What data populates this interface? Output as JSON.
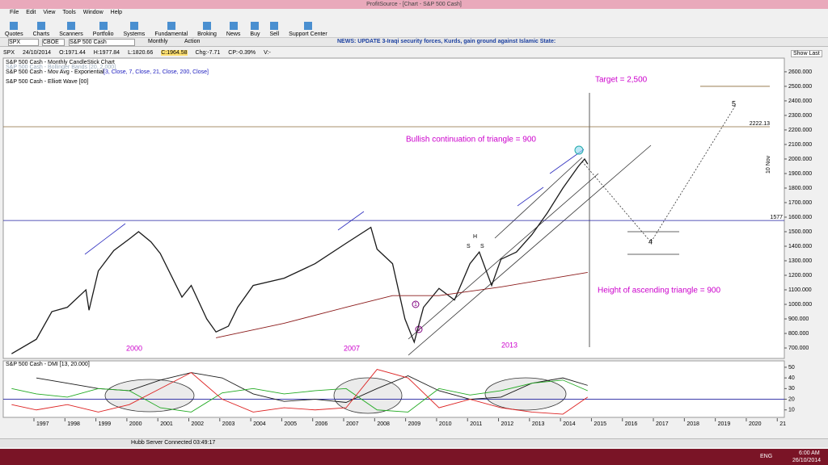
{
  "window": {
    "title": "ProfitSource - [Chart - S&P 500 Cash]",
    "menu": [
      "File",
      "Edit",
      "View",
      "Tools",
      "Window",
      "Help"
    ],
    "toolbar": [
      "Quotes",
      "Charts",
      "Scanners",
      "Portfolio",
      "Systems",
      "Fundamental",
      "Broking",
      "News",
      "Buy",
      "Sell",
      "Support Center"
    ],
    "symbol": "SPX",
    "exchange": "CBOE",
    "security": "S&P 500 Cash",
    "period": "Monthly",
    "action": "Action",
    "news": "NEWS: UPDATE 3-Iraqi security forces, Kurds, gain ground against Islamic State:",
    "info": [
      "SPX",
      "24/10/2014",
      "O:1971.44",
      "H:1977.84",
      "L:1820.66",
      "C:1964.58",
      "Chg:-7.71",
      "CP:-0.39%",
      "V:-"
    ],
    "show_last": "Show Last",
    "status": "Hubb Server Connected 03:49:17",
    "taskbar": {
      "lang": "ENG",
      "time": "6:00 AM",
      "date": "26/10/2014"
    }
  },
  "chart_data": [
    {
      "type": "line",
      "legend_lines": [
        "S&P 500 Cash - Monthly CandleStick Chart",
        "S&P 500 Cash - Bollinger Bands [20, 2.000]",
        "S&P 500 Cash - Mov Avg - Exponential",
        "[3, Close, 7, Close, 21, Close, 200, Close]",
        "S&P 500 Cash - Elliott Wave [00]"
      ],
      "annotations": [
        "Target = 2,500",
        "Bullish continuation of triangle = 900",
        "Height of ascending triangle = 900",
        "2000",
        "2007",
        "2013",
        "H",
        "S",
        "S",
        "5",
        "4",
        "1",
        "2",
        "10 Nov"
      ],
      "xlim": [
        1995.93,
        2021.15
      ],
      "xticks": [
        1997,
        1998,
        1999,
        2000,
        2001,
        2002,
        2003,
        2004,
        2005,
        2006,
        2007,
        2008,
        2009,
        2010,
        2011,
        2012,
        2013,
        2014,
        2015,
        2016,
        2017,
        2018,
        2019,
        2020,
        {
          "value": 2021,
          "label": "21"
        }
      ],
      "ylim": [
        628,
        2694
      ],
      "yticks": [
        {
          "value": 700,
          "label": "700.000"
        },
        {
          "value": 800,
          "label": "800.000"
        },
        {
          "value": 900,
          "label": "900.000"
        },
        {
          "value": 1000,
          "label": "1000.000"
        },
        {
          "value": 1100,
          "label": "1100.000"
        },
        {
          "value": 1200,
          "label": "1200.000"
        },
        {
          "value": 1300,
          "label": "1300.000"
        },
        {
          "value": 1400,
          "label": "1400.000"
        },
        {
          "value": 1500,
          "label": "1500.000"
        },
        {
          "value": 1600,
          "label": "1600.000"
        },
        {
          "value": 1700,
          "label": "1700.000"
        },
        {
          "value": 1800,
          "label": "1800.000"
        },
        {
          "value": 1900,
          "label": "1900.000"
        },
        {
          "value": 2000,
          "label": "2000.000"
        },
        {
          "value": 2100,
          "label": "2100.000"
        },
        {
          "value": 2200,
          "label": "2200.000"
        },
        {
          "value": 2300,
          "label": "2300.000"
        },
        {
          "value": 2400,
          "label": "2400.000"
        },
        {
          "value": 2500,
          "label": "2500.000"
        },
        {
          "value": 2600,
          "label": "2600.000"
        }
      ],
      "levels": [
        1577,
        2222.13
      ],
      "target_level": 2500,
      "series": [
        {
          "color": "#1a1a1a",
          "x": [
            1996.2,
            1997.0,
            1997.5,
            1998.0,
            1998.6,
            1998.7,
            1999.0,
            1999.5,
            2000.0,
            2000.3,
            2000.7,
            2001.0,
            2001.7,
            2002.0,
            2002.5,
            2002.8,
            2003.2,
            2003.5,
            2004.0,
            2005.0,
            2006.0,
            2007.0,
            2007.8,
            2008.0,
            2008.5,
            2008.9,
            2009.2,
            2009.5,
            2010.0,
            2010.5,
            2011.0,
            2011.3,
            2011.7,
            2012.0,
            2012.5,
            2013.0,
            2013.5,
            2014.0,
            2014.5,
            2014.7,
            2014.8
          ],
          "values": [
            660,
            760,
            950,
            980,
            1100,
            960,
            1230,
            1370,
            1450,
            1500,
            1430,
            1350,
            1050,
            1130,
            900,
            810,
            850,
            980,
            1130,
            1180,
            1280,
            1420,
            1530,
            1380,
            1280,
            900,
            740,
            980,
            1110,
            1030,
            1280,
            1360,
            1130,
            1310,
            1360,
            1480,
            1630,
            1800,
            1950,
            2000,
            1965
          ]
        },
        {
          "color": "#8b1a1a",
          "x": [
            2002.8,
            2005.0,
            2007.0,
            2008.5,
            2010.0,
            2012.0,
            2014.8
          ],
          "values": [
            770,
            870,
            980,
            1060,
            1060,
            1120,
            1220
          ]
        }
      ]
    },
    {
      "type": "line",
      "title": "S&P 500 Cash - DMI [13, 20.000]",
      "xlim": [
        1995.93,
        2021.15
      ],
      "ylim": [
        3,
        56
      ],
      "yticks": [
        10,
        20,
        30,
        40,
        50
      ],
      "levels": [
        20
      ],
      "series": [
        {
          "color": "#1a1a1a",
          "x": [
            1997,
            1998,
            1999,
            2000,
            2001,
            2002,
            2003,
            2004,
            2005,
            2006,
            2007,
            2008,
            2009,
            2010,
            2011,
            2012,
            2013,
            2014,
            2014.8
          ],
          "values": [
            40,
            35,
            30,
            28,
            38,
            45,
            40,
            25,
            18,
            20,
            17,
            30,
            42,
            28,
            20,
            22,
            35,
            40,
            33
          ]
        },
        {
          "color": "#22aa22",
          "x": [
            1996.2,
            1997,
            1998,
            1999,
            2000,
            2001,
            2002,
            2003,
            2004,
            2005,
            2006,
            2007,
            2008,
            2009,
            2010,
            2011,
            2012,
            2013,
            2014,
            2014.8
          ],
          "values": [
            30,
            25,
            22,
            30,
            28,
            12,
            8,
            26,
            30,
            25,
            28,
            30,
            10,
            8,
            30,
            24,
            28,
            35,
            38,
            28
          ]
        },
        {
          "color": "#dd2222",
          "x": [
            1996.2,
            1997,
            1998,
            1999,
            2000,
            2001,
            2002,
            2003,
            2004,
            2005,
            2006,
            2007,
            2008,
            2009,
            2010,
            2011,
            2012,
            2013,
            2014,
            2014.8
          ],
          "values": [
            15,
            10,
            15,
            8,
            15,
            30,
            45,
            20,
            8,
            12,
            10,
            12,
            48,
            40,
            12,
            20,
            12,
            8,
            6,
            22
          ]
        }
      ]
    }
  ]
}
